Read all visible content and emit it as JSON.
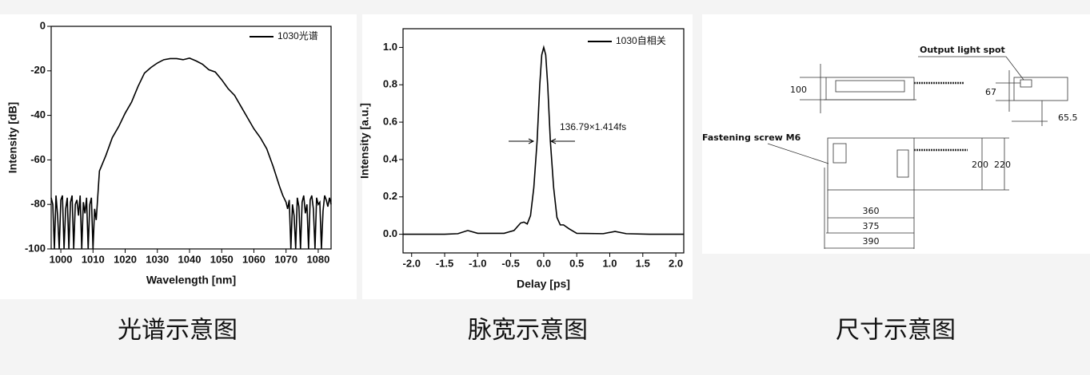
{
  "chart_data": [
    {
      "type": "line",
      "xlabel": "Wavelength [nm]",
      "ylabel": "Intensity [dB]",
      "xlim": [
        997,
        1084
      ],
      "ylim": [
        -100,
        0
      ],
      "xticks": [
        1000,
        1010,
        1020,
        1030,
        1040,
        1050,
        1060,
        1070,
        1080
      ],
      "yticks": [
        0,
        -20,
        -40,
        -60,
        -80,
        -100
      ],
      "series": [
        {
          "name": "1030光谱",
          "color": "#000000",
          "x": [
            997,
            997.5,
            998,
            998.5,
            999,
            999.5,
            1000,
            1000.5,
            1001,
            1001.5,
            1002,
            1002.5,
            1003,
            1003.5,
            1004,
            1004.5,
            1005,
            1005.5,
            1006,
            1006.5,
            1007,
            1007.5,
            1008,
            1008.5,
            1009,
            1009.5,
            1010,
            1010.5,
            1011,
            1012,
            1014,
            1016,
            1018,
            1020,
            1022,
            1024,
            1026,
            1028,
            1030,
            1032,
            1034,
            1036,
            1038,
            1040,
            1042,
            1044,
            1046,
            1048,
            1050,
            1052,
            1054,
            1056,
            1058,
            1060,
            1062,
            1064,
            1066,
            1068,
            1069,
            1070,
            1070.5,
            1071,
            1071.5,
            1072,
            1072.5,
            1073,
            1073.5,
            1074,
            1074.5,
            1075,
            1075.5,
            1076,
            1076.5,
            1077,
            1077.5,
            1078,
            1078.5,
            1079,
            1079.5,
            1080,
            1080.5,
            1081,
            1081.5,
            1082,
            1082.5,
            1083,
            1083.5,
            1084
          ],
          "values": [
            -77,
            -80,
            -100,
            -76,
            -85,
            -100,
            -78,
            -76,
            -100,
            -82,
            -77,
            -100,
            -79,
            -76,
            -100,
            -80,
            -78,
            -85,
            -76,
            -100,
            -79,
            -84,
            -77,
            -100,
            -80,
            -77,
            -100,
            -82,
            -87,
            -65,
            -58,
            -50,
            -45,
            -39,
            -34,
            -27,
            -21,
            -18.5,
            -16.5,
            -15,
            -14.5,
            -14.5,
            -15,
            -14.3,
            -15.5,
            -17,
            -19.5,
            -20.5,
            -24,
            -28,
            -31,
            -36,
            -41,
            -46,
            -50,
            -55,
            -63,
            -72,
            -76,
            -79,
            -82,
            -78,
            -100,
            -80,
            -85,
            -100,
            -77,
            -81,
            -100,
            -79,
            -76,
            -84,
            -80,
            -100,
            -78,
            -76,
            -82,
            -100,
            -77,
            -80,
            -79,
            -100,
            -83,
            -76,
            -78,
            -81,
            -77,
            -80
          ]
        }
      ]
    },
    {
      "type": "line",
      "xlabel": "Delay [ps]",
      "ylabel": "Intensity [a.u.]",
      "annotation": "136.79×1.414fs",
      "xlim": [
        -2.13,
        2.12
      ],
      "ylim": [
        -0.1,
        1.1
      ],
      "xticks": [
        {
          "value": -2,
          "label": "-2.0"
        },
        {
          "value": -1.5,
          "label": "-1.5"
        },
        {
          "value": -1,
          "label": "-1.0"
        },
        {
          "value": -0.5,
          "label": "-0.5"
        },
        {
          "value": 0,
          "label": "0.0"
        },
        {
          "value": 0.5,
          "label": "0.5"
        },
        {
          "value": 1,
          "label": "1.0"
        },
        {
          "value": 1.5,
          "label": "1.5"
        },
        {
          "value": 2,
          "label": "2.0"
        }
      ],
      "yticks": [
        {
          "value": 0,
          "label": "0.0"
        },
        0.2,
        0.4,
        0.6,
        0.8,
        {
          "value": 1,
          "label": "1.0"
        }
      ],
      "series": [
        {
          "name": "1030自相关",
          "color": "#000000",
          "x": [
            -2.13,
            -1.5,
            -1.3,
            -1.15,
            -1.0,
            -0.6,
            -0.45,
            -0.35,
            -0.3,
            -0.25,
            -0.2,
            -0.15,
            -0.1,
            -0.06,
            -0.03,
            0,
            0.03,
            0.06,
            0.1,
            0.15,
            0.2,
            0.25,
            0.3,
            0.38,
            0.5,
            0.9,
            1.08,
            1.25,
            1.6,
            2.12
          ],
          "values": [
            0,
            0,
            0.003,
            0.02,
            0.005,
            0.005,
            0.02,
            0.06,
            0.065,
            0.055,
            0.1,
            0.25,
            0.5,
            0.8,
            0.96,
            1.0,
            0.96,
            0.8,
            0.5,
            0.25,
            0.09,
            0.05,
            0.05,
            0.03,
            0.005,
            0.003,
            0.015,
            0.003,
            0,
            0
          ]
        }
      ]
    }
  ],
  "diagram": {
    "labels": [
      "Output light spot",
      "100",
      "67",
      "65.5",
      "Fastening screw M6",
      "200",
      "220",
      "360",
      "375",
      "390"
    ]
  },
  "captions": [
    "光谱示意图",
    "脉宽示意图",
    "尺寸示意图"
  ]
}
